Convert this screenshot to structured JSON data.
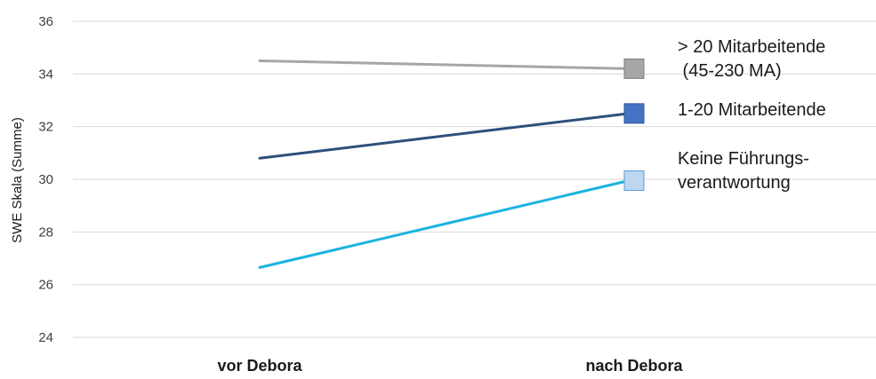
{
  "chart_data": {
    "type": "line",
    "categories": [
      "vor Debora",
      "nach Debora"
    ],
    "ylabel": "SWE Skala (Summe)",
    "xlabel": "",
    "title": "",
    "ylim": [
      24,
      36
    ],
    "yticks": [
      24,
      26,
      28,
      30,
      32,
      34,
      36
    ],
    "grid": true,
    "legend_placement": "right",
    "series": [
      {
        "name": "> 20 Mitarbeitende (45-230 MA)",
        "label_lines": [
          "> 20 Mitarbeitende",
          " (45-230 MA)"
        ],
        "values": [
          34.5,
          34.2
        ],
        "color": "#a6a6a6",
        "marker_fill": "#a6a6a6",
        "marker_stroke": "#7f7f7f"
      },
      {
        "name": "1-20 Mitarbeitende",
        "label_lines": [
          "1-20 Mitarbeitende"
        ],
        "values": [
          30.8,
          32.5
        ],
        "color": "#2e4f7a",
        "marker_fill": "#4472c4",
        "marker_stroke": "#2e5597"
      },
      {
        "name": "Keine Führungsverantwortung",
        "label_lines": [
          "Keine Führungs-",
          "verantwortung"
        ],
        "values": [
          26.65,
          29.95
        ],
        "color": "#19b3e0",
        "marker_fill": "#bdd7ee",
        "marker_stroke": "#5b9bd5"
      }
    ]
  }
}
